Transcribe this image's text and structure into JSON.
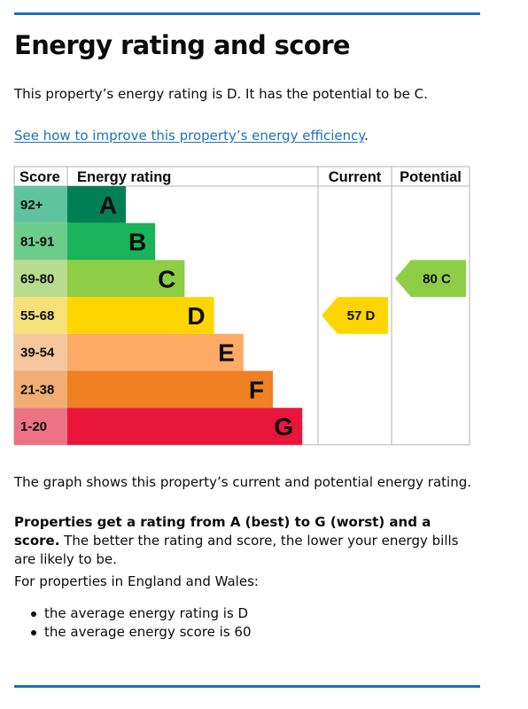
{
  "page": {
    "title": "Energy rating and score",
    "summary": "This property’s energy rating is D. It has the potential to be C.",
    "link_text": "See how to improve this property’s energy efficiency",
    "link_suffix": ".",
    "graph_caption": "The graph shows this property’s current and potential energy rating.",
    "rating_note_bold": "Properties get a rating from A (best) to G (worst) and a score.",
    "rating_note_rest": " The better the rating and score, the lower your energy bills are likely to be.",
    "ew_intro": "For properties in England and Wales:",
    "averages": [
      "the average energy rating is D",
      "the average energy score is 60"
    ]
  },
  "colors": {
    "rule": "#1d70b8",
    "link": "#1d70b8",
    "text": "#0b0c0c",
    "grid": "#b1b4b6"
  },
  "chart_data": {
    "type": "bar",
    "headers": {
      "score": "Score",
      "rating": "Energy rating",
      "current": "Current",
      "potential": "Potential"
    },
    "bands": [
      {
        "letter": "A",
        "range": "92+",
        "min": 92,
        "max": 100,
        "color": "#008054",
        "score_color": "#5fc3a0"
      },
      {
        "letter": "B",
        "range": "81-91",
        "min": 81,
        "max": 91,
        "color": "#19b459",
        "score_color": "#6ccc8b"
      },
      {
        "letter": "C",
        "range": "69-80",
        "min": 69,
        "max": 80,
        "color": "#8dce46",
        "score_color": "#b7dc8d"
      },
      {
        "letter": "D",
        "range": "55-68",
        "min": 55,
        "max": 68,
        "color": "#ffd500",
        "score_color": "#f6e07a"
      },
      {
        "letter": "E",
        "range": "39-54",
        "min": 39,
        "max": 54,
        "color": "#fcaa65",
        "score_color": "#f6c79c"
      },
      {
        "letter": "F",
        "range": "21-38",
        "min": 21,
        "max": 38,
        "color": "#ef8023",
        "score_color": "#f2ad72"
      },
      {
        "letter": "G",
        "range": "1-20",
        "min": 1,
        "max": 20,
        "color": "#e9153b",
        "score_color": "#ed7284"
      }
    ],
    "current": {
      "score": 57,
      "rating": "D",
      "label": "57 D",
      "color": "#ffd500"
    },
    "potential": {
      "score": 80,
      "rating": "C",
      "label": "80 C",
      "color": "#8dce46"
    }
  }
}
